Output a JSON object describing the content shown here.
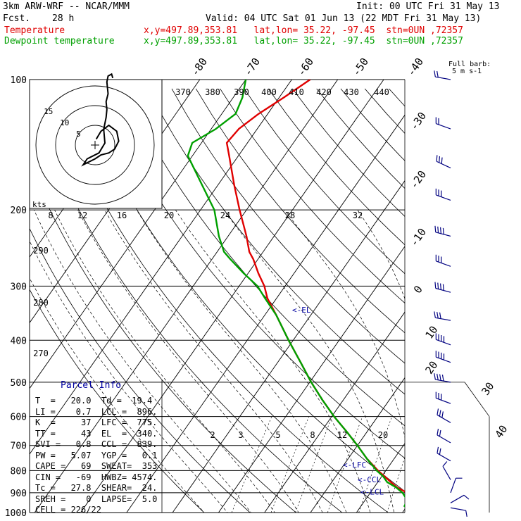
{
  "header": {
    "model": "3km ARW-WRF -- NCAR/MMM",
    "init": "Init: 00 UTC Fri 31 May 13",
    "fcst_label": "Fcst.",
    "fcst_value": "28 h",
    "valid": "Valid: 04 UTC Sat 01 Jun 13 (22 MDT Fri 31 May 13)",
    "temp_label": "Temperature",
    "temp_info": "x,y=497.89,353.81   lat,lon= 35.22, -97.45  stn=0UN ,72357",
    "dew_label": "Dewpoint temperature",
    "dew_info": "x,y=497.89,353.81   lat,lon= 35.22, -97.45  stn=0UN ,72357"
  },
  "wind_legend": {
    "line1": "Full barb:",
    "line2": "5 m s-1"
  },
  "hodograph": {
    "unit_label": "kts",
    "ring_labels": [
      "5",
      "10",
      "15"
    ]
  },
  "parcel_info": {
    "title": "Parcel Info",
    "rows": [
      "T  =   20.0  Td =  19.4",
      "LI =    0.7  LCL =  896.",
      "K  =     37  LFC =  775.",
      "TT =     43  EL  =  340.",
      "SVI =   0.8  CCL =  839.",
      "PW =   5.07  YGP =   0.1",
      "CAPE =   69  SWEAT=  353",
      "CIN =   -69  HWBZ= 4574.",
      "Tc =   27.8  SHEAR=  24.",
      "SREH =    0  LAPSE=  5.0",
      "CELL = 226/22"
    ]
  },
  "level_labels": {
    "el": "<-EL",
    "lfc": "<-LFC",
    "ccl": "<-CCL",
    "lcl": "<-LCL"
  },
  "chart_data": {
    "type": "line",
    "xlabel": "",
    "ylabel": "",
    "pressure_levels": [
      100,
      200,
      300,
      400,
      500,
      600,
      700,
      800,
      900,
      1000
    ],
    "pressure_ylim": [
      1000,
      100
    ],
    "isotherm_labels": [
      -80,
      -70,
      -60,
      -50,
      -40,
      -30,
      -20,
      -10,
      0,
      10,
      20,
      30,
      40
    ],
    "theta_labels_upper": [
      370,
      380,
      390,
      400,
      410,
      420,
      430,
      440
    ],
    "theta_labels_left": [
      290,
      280,
      270
    ],
    "hodo_speed_labels": [
      8,
      12,
      16,
      20,
      24,
      28,
      32
    ],
    "mixing_ratio_labels": [
      2,
      3,
      5,
      8,
      12,
      20
    ],
    "series": [
      {
        "name": "Temperature",
        "color": "#e00000",
        "p": [
          970,
          950,
          925,
          900,
          875,
          850,
          825,
          800,
          750,
          700,
          650,
          600,
          550,
          500,
          450,
          400,
          350,
          320,
          300,
          280,
          260,
          250,
          230,
          200,
          175,
          150,
          140,
          130,
          120,
          110,
          100
        ],
        "t": [
          21.0,
          22.0,
          20.5,
          18.0,
          15.0,
          12.8,
          10.6,
          8.3,
          4.0,
          0.0,
          -4.5,
          -9.5,
          -14.5,
          -19.7,
          -25.0,
          -31.0,
          -37.5,
          -42.0,
          -44.5,
          -47.8,
          -51.0,
          -53.0,
          -56.0,
          -61.5,
          -66.5,
          -72.0,
          -74.5,
          -74.0,
          -72.0,
          -69.0,
          -66.0
        ]
      },
      {
        "name": "Dewpoint temperature",
        "color": "#00a000",
        "p": [
          970,
          950,
          925,
          900,
          875,
          850,
          825,
          800,
          750,
          700,
          650,
          600,
          550,
          500,
          450,
          400,
          350,
          320,
          300,
          280,
          260,
          250,
          230,
          200,
          175,
          150,
          140,
          130,
          120,
          110,
          100
        ],
        "t": [
          19.5,
          19.3,
          18.5,
          17.0,
          14.8,
          12.0,
          10.3,
          8.0,
          4.0,
          0.0,
          -4.5,
          -9.5,
          -14.5,
          -19.7,
          -25.0,
          -31.0,
          -37.5,
          -42.5,
          -46.0,
          -51.0,
          -56.0,
          -58.5,
          -62.0,
          -67.0,
          -73.5,
          -81.0,
          -82.0,
          -79.0,
          -77.0,
          -78.0,
          -80.0
        ]
      }
    ],
    "parcel_levels_hpa": {
      "EL": 340,
      "LFC": 775,
      "CCL": 839,
      "LCL": 896
    },
    "hodograph_trace": {
      "u": [
        0.3,
        1.5,
        3.5,
        5.5,
        6.0,
        5.0,
        3.5,
        1.5,
        0.0,
        -2.0,
        -3.0,
        -2.0,
        1.0,
        2.5,
        2.2,
        2.8,
        3.0,
        2.8,
        3.3,
        3.0,
        3.3,
        4.2,
        4.5
      ],
      "v": [
        1.5,
        3.5,
        5.0,
        3.5,
        1.0,
        -1.0,
        -2.0,
        -2.5,
        -3.5,
        -4.5,
        -5.0,
        -3.5,
        -2.0,
        0.5,
        4.0,
        7.0,
        9.0,
        11.0,
        13.0,
        16.0,
        17.5,
        18.0,
        17.0
      ]
    },
    "wind_barbs": [
      {
        "p": 100,
        "speed_ms": 10,
        "dir_deg": 280
      },
      {
        "p": 130,
        "speed_ms": 10,
        "dir_deg": 290
      },
      {
        "p": 160,
        "speed_ms": 15,
        "dir_deg": 295
      },
      {
        "p": 190,
        "speed_ms": 15,
        "dir_deg": 290
      },
      {
        "p": 230,
        "speed_ms": 20,
        "dir_deg": 285
      },
      {
        "p": 270,
        "speed_ms": 15,
        "dir_deg": 290
      },
      {
        "p": 310,
        "speed_ms": 20,
        "dir_deg": 285
      },
      {
        "p": 360,
        "speed_ms": 15,
        "dir_deg": 280
      },
      {
        "p": 410,
        "speed_ms": 20,
        "dir_deg": 290
      },
      {
        "p": 450,
        "speed_ms": 20,
        "dir_deg": 290
      },
      {
        "p": 500,
        "speed_ms": 20,
        "dir_deg": 280
      },
      {
        "p": 560,
        "speed_ms": 15,
        "dir_deg": 290
      },
      {
        "p": 620,
        "speed_ms": 15,
        "dir_deg": 300
      },
      {
        "p": 690,
        "speed_ms": 10,
        "dir_deg": 300
      },
      {
        "p": 760,
        "speed_ms": 10,
        "dir_deg": 300
      },
      {
        "p": 840,
        "speed_ms": 5,
        "dir_deg": 330
      },
      {
        "p": 900,
        "speed_ms": 5,
        "dir_deg": 20
      },
      {
        "p": 950,
        "speed_ms": 5,
        "dir_deg": 60
      },
      {
        "p": 975,
        "speed_ms": 5,
        "dir_deg": 100
      }
    ]
  }
}
